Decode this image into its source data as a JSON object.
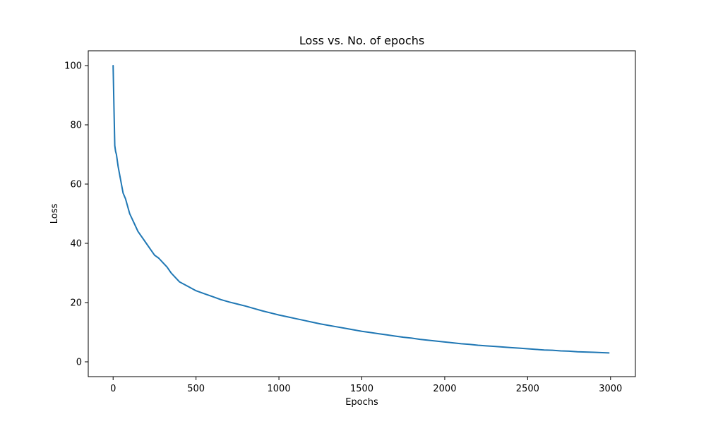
{
  "chart_data": {
    "type": "line",
    "title": "Loss vs. No. of epochs",
    "xlabel": "Epochs",
    "ylabel": "Loss",
    "xlim": [
      -150,
      3150
    ],
    "ylim": [
      -5,
      105
    ],
    "xticks": [
      0,
      500,
      1000,
      1500,
      2000,
      2500,
      3000
    ],
    "xtick_labels": [
      "0",
      "500",
      "1000",
      "1500",
      "2000",
      "2500",
      "3000"
    ],
    "yticks": [
      0,
      20,
      40,
      60,
      80,
      100
    ],
    "ytick_labels": [
      "0",
      "20",
      "40",
      "60",
      "80",
      "100"
    ],
    "grid": false,
    "legend": false,
    "series": [
      {
        "color": "#1f77b4",
        "x": [
          0,
          5,
          10,
          15,
          20,
          30,
          40,
          50,
          60,
          75,
          90,
          100,
          125,
          150,
          175,
          200,
          225,
          250,
          275,
          300,
          325,
          350,
          375,
          400,
          450,
          500,
          550,
          600,
          650,
          700,
          750,
          800,
          850,
          900,
          950,
          1000,
          1050,
          1100,
          1150,
          1200,
          1250,
          1300,
          1350,
          1400,
          1450,
          1500,
          1550,
          1600,
          1650,
          1700,
          1750,
          1800,
          1850,
          1900,
          1950,
          2000,
          2050,
          2100,
          2150,
          2200,
          2250,
          2300,
          2350,
          2400,
          2450,
          2500,
          2550,
          2600,
          2650,
          2700,
          2750,
          2800,
          2850,
          2900,
          2950,
          2990
        ],
        "y": [
          100,
          86,
          73,
          71,
          70,
          66,
          63,
          60,
          57,
          55,
          52,
          50,
          47,
          44,
          42,
          40,
          38,
          36,
          35,
          33.5,
          32,
          30,
          28.5,
          27,
          25.5,
          24,
          23,
          22,
          21,
          20.2,
          19.5,
          18.8,
          18,
          17.2,
          16.5,
          15.8,
          15.2,
          14.6,
          14,
          13.4,
          12.8,
          12.3,
          11.8,
          11.3,
          10.8,
          10.3,
          9.9,
          9.5,
          9.1,
          8.7,
          8.3,
          8,
          7.6,
          7.3,
          7,
          6.7,
          6.4,
          6.1,
          5.9,
          5.6,
          5.4,
          5.2,
          5,
          4.8,
          4.6,
          4.4,
          4.2,
          4,
          3.9,
          3.7,
          3.6,
          3.4,
          3.3,
          3.2,
          3.1,
          3
        ]
      }
    ]
  }
}
